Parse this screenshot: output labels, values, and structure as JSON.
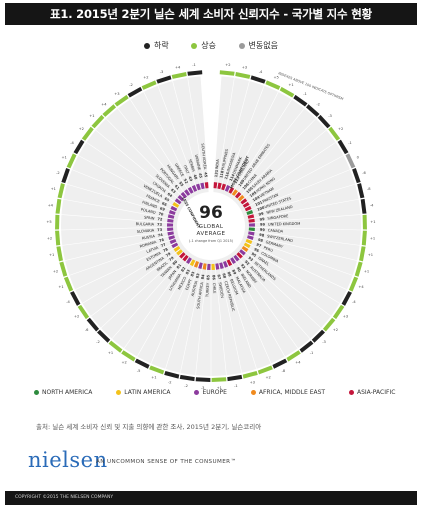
{
  "title": "표1. 2015년 2분기 닐슨 세계 소비자 신뢰지수 - 국가별 지수 현황",
  "legend": {
    "down": {
      "label": "하락",
      "color": "#222222"
    },
    "up": {
      "label": "상승",
      "color": "#8dc63f"
    },
    "unchanged": {
      "label": "변동없음",
      "color": "#9b9b9b"
    }
  },
  "regions": {
    "NA": {
      "label": "NORTH AMERICA",
      "color": "#2e8b3e"
    },
    "LA": {
      "label": "LATIN AMERICA",
      "color": "#f3c21a"
    },
    "EU": {
      "label": "EUROPE",
      "color": "#8c3b9e"
    },
    "AME": {
      "label": "AFRICA, MIDDLE EAST",
      "color": "#f08a1e"
    },
    "AP": {
      "label": "ASIA-PACIFIC",
      "color": "#c4163b"
    }
  },
  "source": "출처: 닐슨 세계 소비자 신뢰 및 지출 의향에 관한 조사, 2015년 2분기, 닐슨코리아",
  "brand": {
    "logo": "nielsen",
    "tagline": "AN UNCOMMON SENSE OF THE CONSUMER™",
    "copyright": "COPYRIGHT ©2015 THE NIELSEN COMPANY"
  },
  "chart_data": {
    "type": "radial-bar",
    "center": {
      "value": "96",
      "label1": "GLOBAL",
      "label2": "AVERAGE",
      "note": "(-1 change from Q1 2015)"
    },
    "annotations": {
      "more_confident": "MORE CONFIDENT",
      "less_confident": "LESS CONFIDENT",
      "above": "INDEXES ABOVE 100 INDICATE OPTIMISM"
    },
    "countries": [
      {
        "name": "INDIA",
        "value": 131,
        "change": "+2",
        "dir": "up",
        "region": "AP"
      },
      {
        "name": "PHILIPPINES",
        "value": 118,
        "change": "+3",
        "dir": "up",
        "region": "AP"
      },
      {
        "name": "INDONESIA",
        "value": 116,
        "change": "-4",
        "dir": "down",
        "region": "AP"
      },
      {
        "name": "DENMARK",
        "value": 114,
        "change": "+5",
        "dir": "up",
        "region": "EU"
      },
      {
        "name": "THAILAND",
        "value": 113,
        "change": "+1",
        "dir": "up",
        "region": "AP"
      },
      {
        "name": "UNITED ARAB EMIRATES",
        "value": 109,
        "change": "-1",
        "dir": "down",
        "region": "AME"
      },
      {
        "name": "CHINA",
        "value": 106,
        "change": "-2",
        "dir": "down",
        "region": "AP"
      },
      {
        "name": "SAUDI ARABIA",
        "value": 105,
        "change": "-3",
        "dir": "down",
        "region": "AME"
      },
      {
        "name": "HONG KONG",
        "value": 105,
        "change": "+2",
        "dir": "up",
        "region": "AP"
      },
      {
        "name": "VIETNAM",
        "value": 104,
        "change": "-1",
        "dir": "down",
        "region": "AP"
      },
      {
        "name": "PAKISTAN",
        "value": 101,
        "change": "0",
        "dir": "unchanged",
        "region": "AP"
      },
      {
        "name": "UNITED STATES",
        "value": 100,
        "change": "-6",
        "dir": "down",
        "region": "NA"
      },
      {
        "name": "NEW ZEALAND",
        "value": 99,
        "change": "-8",
        "dir": "down",
        "region": "AP"
      },
      {
        "name": "SINGAPORE",
        "value": 99,
        "change": "-4",
        "dir": "down",
        "region": "AP"
      },
      {
        "name": "UNITED KINGDOM",
        "value": 99,
        "change": "+1",
        "dir": "up",
        "region": "EU"
      },
      {
        "name": "CANADA",
        "value": 99,
        "change": "+1",
        "dir": "up",
        "region": "NA"
      },
      {
        "name": "SWITZERLAND",
        "value": 98,
        "change": "+1",
        "dir": "up",
        "region": "EU"
      },
      {
        "name": "GERMANY",
        "value": 98,
        "change": "+1",
        "dir": "up",
        "region": "EU"
      },
      {
        "name": "PERU",
        "value": 97,
        "change": "+4",
        "dir": "up",
        "region": "LA"
      },
      {
        "name": "COLOMBIA",
        "value": 96,
        "change": "-4",
        "dir": "down",
        "region": "LA"
      },
      {
        "name": "ISRAEL",
        "value": 95,
        "change": "+3",
        "dir": "up",
        "region": "AME"
      },
      {
        "name": "NETHERLANDS",
        "value": 93,
        "change": "+2",
        "dir": "up",
        "region": "EU"
      },
      {
        "name": "AUSTRALIA",
        "value": 92,
        "change": "-3",
        "dir": "down",
        "region": "AP"
      },
      {
        "name": "NORWAY",
        "value": 92,
        "change": "-1",
        "dir": "down",
        "region": "EU"
      },
      {
        "name": "IRELAND",
        "value": 90,
        "change": "+4",
        "dir": "up",
        "region": "EU"
      },
      {
        "name": "MALAYSIA",
        "value": 89,
        "change": "-8",
        "dir": "down",
        "region": "AP"
      },
      {
        "name": "BELGIUM",
        "value": 88,
        "change": "+2",
        "dir": "up",
        "region": "EU"
      },
      {
        "name": "CZECH REPUBLIC",
        "value": 88,
        "change": "+3",
        "dir": "up",
        "region": "EU"
      },
      {
        "name": "SWEDEN",
        "value": 87,
        "change": "-1",
        "dir": "down",
        "region": "EU"
      },
      {
        "name": "CHILE",
        "value": 86,
        "change": "+1",
        "dir": "up",
        "region": "LA"
      },
      {
        "name": "TURKEY",
        "value": 85,
        "change": "-3",
        "dir": "down",
        "region": "EU"
      },
      {
        "name": "SOUTH AFRICA",
        "value": 84,
        "change": "-2",
        "dir": "down",
        "region": "AME"
      },
      {
        "name": "AUSTRIA",
        "value": 83,
        "change": "-2",
        "dir": "down",
        "region": "EU"
      },
      {
        "name": "EGYPT",
        "value": 83,
        "change": "+1",
        "dir": "up",
        "region": "AME"
      },
      {
        "name": "MEXICO",
        "value": 83,
        "change": "-5",
        "dir": "down",
        "region": "LA"
      },
      {
        "name": "LITHUANIA",
        "value": 82,
        "change": "+2",
        "dir": "up",
        "region": "EU"
      },
      {
        "name": "JAPAN",
        "value": 81,
        "change": "+1",
        "dir": "up",
        "region": "AP"
      },
      {
        "name": "TAIWAN",
        "value": 80,
        "change": "-2",
        "dir": "down",
        "region": "AP"
      },
      {
        "name": "BRAZIL",
        "value": 79,
        "change": "-6",
        "dir": "down",
        "region": "LA"
      },
      {
        "name": "ARGENTINA",
        "value": 79,
        "change": "+2",
        "dir": "up",
        "region": "LA"
      },
      {
        "name": "ESTONIA",
        "value": 78,
        "change": "-4",
        "dir": "down",
        "region": "EU"
      },
      {
        "name": "LATVIA",
        "value": 77,
        "change": "+1",
        "dir": "up",
        "region": "EU"
      },
      {
        "name": "ROMANIA",
        "value": 76,
        "change": "+2",
        "dir": "up",
        "region": "EU"
      },
      {
        "name": "RUSSIA",
        "value": 74,
        "change": "+1",
        "dir": "up",
        "region": "EU"
      },
      {
        "name": "SLOVAKIA",
        "value": 73,
        "change": "+2",
        "dir": "up",
        "region": "EU"
      },
      {
        "name": "BULGARIA",
        "value": 73,
        "change": "+5",
        "dir": "up",
        "region": "EU"
      },
      {
        "name": "SPAIN",
        "value": 72,
        "change": "+4",
        "dir": "up",
        "region": "EU"
      },
      {
        "name": "POLAND",
        "value": 70,
        "change": "+1",
        "dir": "up",
        "region": "EU"
      },
      {
        "name": "FINLAND",
        "value": 69,
        "change": "-2",
        "dir": "down",
        "region": "EU"
      },
      {
        "name": "FRANCE",
        "value": 66,
        "change": "+1",
        "dir": "up",
        "region": "EU"
      },
      {
        "name": "VENEZUELA",
        "value": 65,
        "change": "-4",
        "dir": "down",
        "region": "LA"
      },
      {
        "name": "CROATIA",
        "value": 64,
        "change": "+2",
        "dir": "up",
        "region": "EU"
      },
      {
        "name": "SLOVENIA",
        "value": 63,
        "change": "+1",
        "dir": "up",
        "region": "EU"
      },
      {
        "name": "PORTUGAL",
        "value": 61,
        "change": "+4",
        "dir": "up",
        "region": "EU"
      },
      {
        "name": "HUNGARY",
        "value": 55,
        "change": "+3",
        "dir": "up",
        "region": "EU"
      },
      {
        "name": "GREECE",
        "value": 52,
        "change": "-2",
        "dir": "down",
        "region": "EU"
      },
      {
        "name": "ITALY",
        "value": 49,
        "change": "+2",
        "dir": "up",
        "region": "EU"
      },
      {
        "name": "SERBIA",
        "value": 48,
        "change": "-3",
        "dir": "down",
        "region": "EU"
      },
      {
        "name": "UKRAINE",
        "value": 45,
        "change": "+4",
        "dir": "up",
        "region": "EU"
      },
      {
        "name": "SOUTH KOREA",
        "value": 45,
        "change": "-1",
        "dir": "down",
        "region": "AP"
      }
    ]
  }
}
